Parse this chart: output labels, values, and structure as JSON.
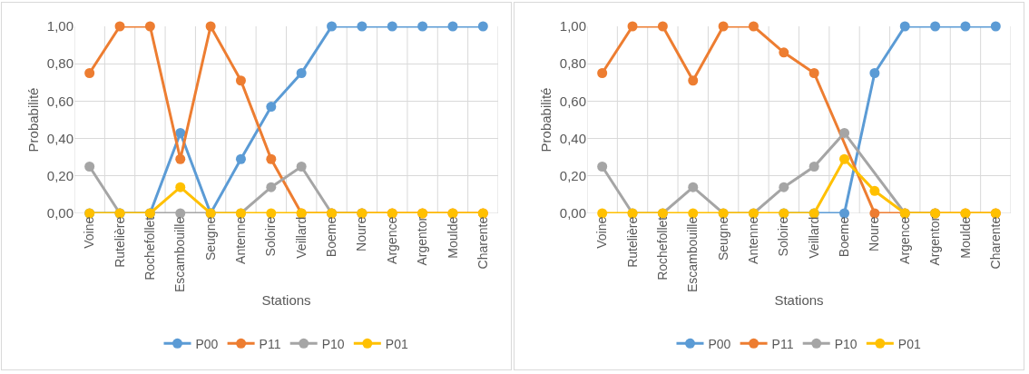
{
  "chart_data": [
    {
      "type": "line",
      "xlabel": "Stations",
      "ylabel": "Probabilité",
      "categories": [
        "Voine",
        "Rutelière",
        "Rochefollet",
        "Escambouille",
        "Seugne",
        "Antenne",
        "Soloire",
        "Veillard",
        "Boeme",
        "Noure",
        "Argence",
        "Argentor",
        "Moulde",
        "Charente"
      ],
      "series": [
        {
          "name": "P00",
          "color": "#5b9bd5",
          "values": [
            0,
            0,
            0,
            0.43,
            0,
            0.29,
            0.57,
            0.75,
            1,
            1,
            1,
            1,
            1,
            1
          ]
        },
        {
          "name": "P11",
          "color": "#ed7d31",
          "values": [
            0.75,
            1,
            1,
            0.29,
            1,
            0.71,
            0.29,
            0,
            0,
            0,
            0,
            0,
            0,
            0
          ]
        },
        {
          "name": "P10",
          "color": "#a5a5a5",
          "values": [
            0.25,
            0,
            0,
            0,
            0,
            0,
            0.14,
            0.25,
            0,
            0,
            null,
            null,
            null,
            null
          ]
        },
        {
          "name": "P01",
          "color": "#ffc000",
          "values": [
            0,
            0,
            0,
            0.14,
            0,
            0,
            0,
            0,
            0,
            0,
            0,
            0,
            0,
            0
          ]
        }
      ],
      "ylim": [
        0,
        1
      ],
      "yticks": [
        {
          "value": 0,
          "label": "0,00"
        },
        {
          "value": 0.2,
          "label": "0,20"
        },
        {
          "value": 0.4,
          "label": "0,40"
        },
        {
          "value": 0.6,
          "label": "0,60"
        },
        {
          "value": 0.8,
          "label": "0,80"
        },
        {
          "value": 1,
          "label": "1,00"
        }
      ],
      "grid": true,
      "legend": "bottom",
      "marker": "circle",
      "line_style": "solid"
    },
    {
      "type": "line",
      "xlabel": "Stations",
      "ylabel": "Probabilité",
      "categories": [
        "Voine",
        "Rutelière",
        "Rochefollet",
        "Escambouille",
        "Seugne",
        "Antenne",
        "Soloire",
        "Veillard",
        "Boeme",
        "Noure",
        "Argence",
        "Argentor",
        "Moulde",
        "Charente"
      ],
      "series": [
        {
          "name": "P00",
          "color": "#5b9bd5",
          "values": [
            null,
            null,
            null,
            null,
            null,
            null,
            0,
            0,
            0,
            0.75,
            1,
            1,
            1,
            1
          ]
        },
        {
          "name": "P11",
          "color": "#ed7d31",
          "values": [
            0.75,
            1,
            1,
            0.71,
            1,
            1,
            0.86,
            0.75,
            null,
            0,
            0,
            0,
            0,
            0
          ]
        },
        {
          "name": "P10",
          "color": "#a5a5a5",
          "values": [
            0.25,
            0,
            0,
            0.14,
            0,
            0,
            0.14,
            0.25,
            0.43,
            null,
            0,
            0,
            null,
            null
          ]
        },
        {
          "name": "P01",
          "color": "#ffc000",
          "values": [
            0,
            0,
            0,
            0,
            0,
            0,
            0,
            0,
            0.29,
            0.12,
            0,
            0,
            0,
            0
          ]
        }
      ],
      "ylim": [
        0,
        1
      ],
      "yticks": [
        {
          "value": 0,
          "label": "0,00"
        },
        {
          "value": 0.2,
          "label": "0,20"
        },
        {
          "value": 0.4,
          "label": "0,40"
        },
        {
          "value": 0.6,
          "label": "0,60"
        },
        {
          "value": 0.8,
          "label": "0,80"
        },
        {
          "value": 1,
          "label": "1,00"
        }
      ],
      "grid": true,
      "legend": "bottom",
      "marker": "circle",
      "line_style": "solid"
    }
  ]
}
